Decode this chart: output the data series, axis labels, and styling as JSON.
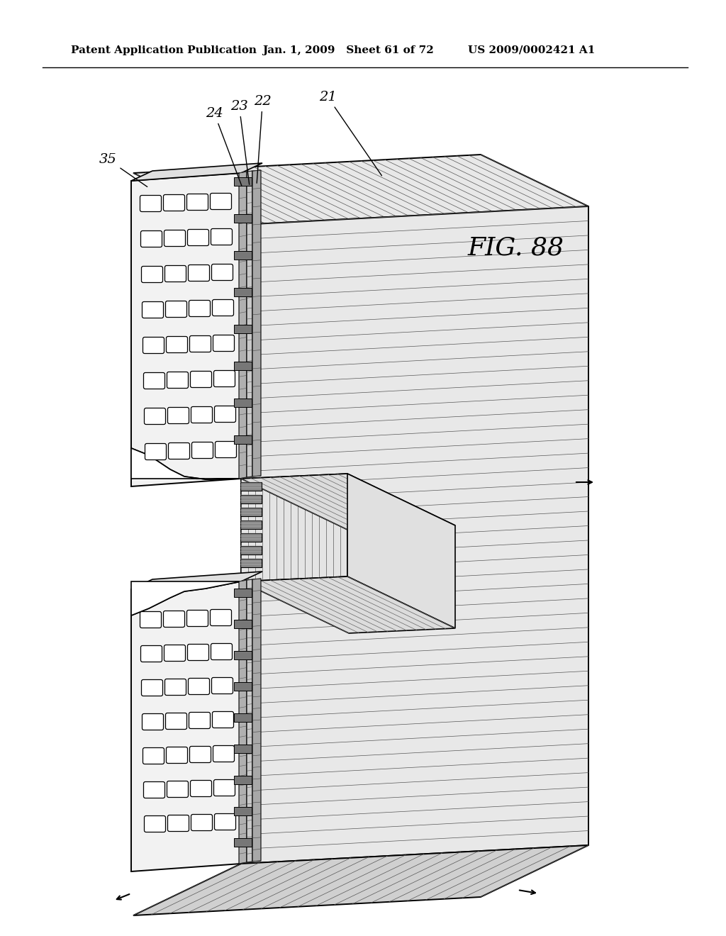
{
  "header_left": "Patent Application Publication",
  "header_mid": "Jan. 1, 2009   Sheet 61 of 72",
  "header_right": "US 2009/0002421 A1",
  "fig_label": "FIG. 88",
  "background_color": "#ffffff"
}
